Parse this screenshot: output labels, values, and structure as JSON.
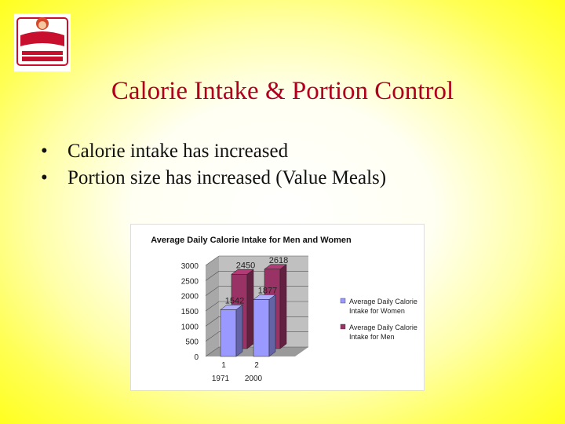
{
  "logo": {
    "brand": "Wendy's",
    "tagline": "OLD FASHIONED",
    "sub": "HAMBURGERS",
    "colors": {
      "red": "#c8102e",
      "hair": "#d4492a",
      "skin": "#f4c9a0"
    }
  },
  "slide": {
    "title": "Calorie Intake & Portion Control",
    "bullet_symbol": "•",
    "bullets": [
      "Calorie intake has increased",
      "Portion size has increased (Value Meals)"
    ],
    "title_color": "#b0001e"
  },
  "chart_data": {
    "type": "bar",
    "title": "Average Daily Calorie Intake for Men and Women",
    "categories": [
      "1",
      "2"
    ],
    "category_years": [
      "1971",
      "2000"
    ],
    "series": [
      {
        "name": "Average Daily Calorie Intake for Women",
        "values": [
          1542,
          1877
        ],
        "color": "#9999ff"
      },
      {
        "name": "Average Daily Calorie Intake for Men",
        "values": [
          2450,
          2618
        ],
        "color": "#993366"
      }
    ],
    "ylim": [
      0,
      3000
    ],
    "yticks": [
      0,
      500,
      1000,
      1500,
      2000,
      2500,
      3000
    ],
    "grid": true,
    "legend": "right",
    "three_d": true
  }
}
